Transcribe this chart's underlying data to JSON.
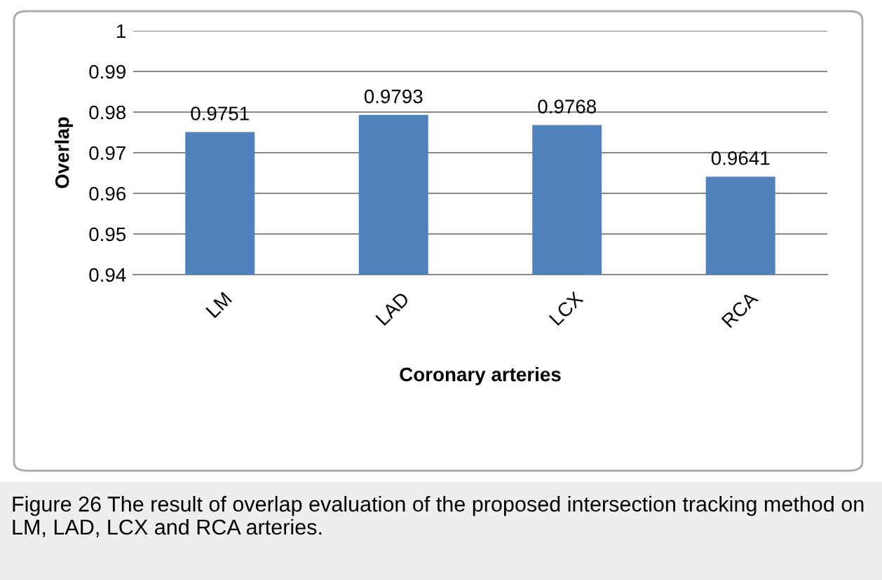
{
  "chart_data": {
    "type": "bar",
    "categories": [
      "LM",
      "LAD",
      "LCX",
      "RCA"
    ],
    "values": [
      0.9751,
      0.9793,
      0.9768,
      0.9641
    ],
    "color": "#4f81bd",
    "data_labels": true,
    "ylim": [
      0.94,
      1
    ],
    "yticks": [
      0.94,
      0.95,
      0.96,
      0.97,
      0.98,
      0.99,
      1
    ],
    "grid": "y",
    "xlabel": "Coronary arteries",
    "ylabel": "Overlap",
    "annotations": [
      "Figure 26 The result of overlap evaluation of the proposed intersection tracking method on LM, LAD, LCX and RCA arteries."
    ]
  }
}
